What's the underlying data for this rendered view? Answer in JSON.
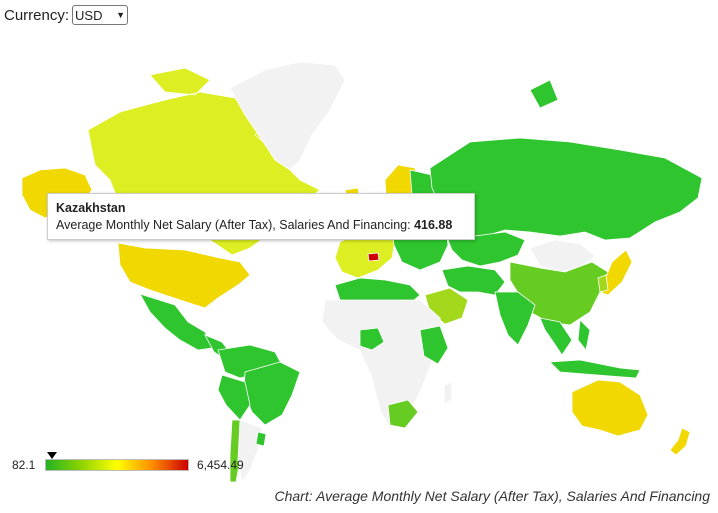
{
  "currency": {
    "label": "Currency:",
    "selected": "USD"
  },
  "tooltip": {
    "country": "Kazakhstan",
    "metric_label": "Average Monthly Net Salary (After Tax), Salaries And Financing:",
    "value": "416.88"
  },
  "legend": {
    "min_label": "82.1",
    "max_label": "6,454.49",
    "marker_value": 82.1,
    "colors": [
      "#22b422",
      "#8fd400",
      "#ffff00",
      "#ff8c00",
      "#cc0000"
    ]
  },
  "caption": "Chart: Average Monthly Net Salary (After Tax), Salaries And Financing",
  "map_colors": {
    "no_data": "#f2f2f2",
    "border": "#ffffff",
    "low": "#2ec52e",
    "low_mid": "#66cc22",
    "mid": "#a4d81c",
    "high_mid": "#ddee22",
    "high": "#f0d800",
    "highest": "#cc0000"
  },
  "regions": [
    {
      "name": "Canada",
      "color": "high_mid"
    },
    {
      "name": "United States",
      "color": "high"
    },
    {
      "name": "Alaska",
      "color": "high"
    },
    {
      "name": "Greenland",
      "color": "no_data"
    },
    {
      "name": "Mexico",
      "color": "low"
    },
    {
      "name": "Central America",
      "color": "low"
    },
    {
      "name": "Colombia & Venezuela",
      "color": "low"
    },
    {
      "name": "Brazil",
      "color": "low"
    },
    {
      "name": "Peru & Bolivia",
      "color": "low"
    },
    {
      "name": "Chile",
      "color": "low_mid"
    },
    {
      "name": "Argentina",
      "color": "no_data"
    },
    {
      "name": "Uruguay",
      "color": "low"
    },
    {
      "name": "Northern Europe",
      "color": "high"
    },
    {
      "name": "Western Europe",
      "color": "high_mid"
    },
    {
      "name": "Eastern Europe",
      "color": "low"
    },
    {
      "name": "Switzerland",
      "color": "highest"
    },
    {
      "name": "Russia",
      "color": "low"
    },
    {
      "name": "Kazakhstan",
      "color": "low"
    },
    {
      "name": "Mongolia",
      "color": "no_data"
    },
    {
      "name": "China",
      "color": "low_mid"
    },
    {
      "name": "Japan",
      "color": "high"
    },
    {
      "name": "Korea",
      "color": "mid"
    },
    {
      "name": "Middle East",
      "color": "low"
    },
    {
      "name": "Saudi Arabia",
      "color": "mid"
    },
    {
      "name": "India",
      "color": "low"
    },
    {
      "name": "Southeast Asia",
      "color": "low"
    },
    {
      "name": "Indonesia",
      "color": "low"
    },
    {
      "name": "Australia",
      "color": "high"
    },
    {
      "name": "New Zealand",
      "color": "high"
    },
    {
      "name": "North Africa",
      "color": "low"
    },
    {
      "name": "Sub-Saharan Africa",
      "color": "no_data"
    },
    {
      "name": "Nigeria",
      "color": "low"
    },
    {
      "name": "Ethiopia & Kenya",
      "color": "low"
    },
    {
      "name": "South Africa",
      "color": "low_mid"
    },
    {
      "name": "Madagascar",
      "color": "no_data"
    }
  ]
}
